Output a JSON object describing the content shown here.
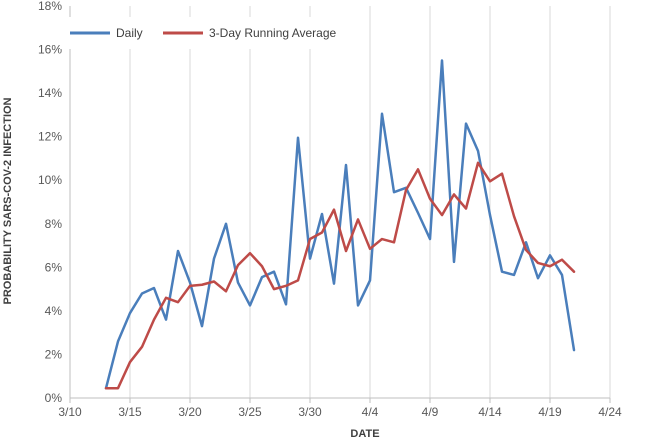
{
  "chart_data": {
    "type": "line",
    "title": "",
    "xlabel": "DATE",
    "ylabel": "PROBABILITY SARS-COV-2 INFECTION",
    "x_tick_labels": [
      "3/10",
      "3/15",
      "3/20",
      "3/25",
      "3/30",
      "4/4",
      "4/9",
      "4/14",
      "4/19",
      "4/24"
    ],
    "y_tick_labels": [
      "0%",
      "2%",
      "4%",
      "6%",
      "8%",
      "10%",
      "12%",
      "14%",
      "16%",
      "18%"
    ],
    "xlim": [
      "3/10",
      "4/24"
    ],
    "ylim": [
      0,
      18
    ],
    "grid": "vertical",
    "legend_position": "top-left",
    "series": [
      {
        "name": "Daily",
        "color": "#4a7ebb",
        "points": [
          [
            "3/13",
            0.45
          ],
          [
            "3/14",
            2.6
          ],
          [
            "3/15",
            3.9
          ],
          [
            "3/16",
            4.8
          ],
          [
            "3/17",
            5.05
          ],
          [
            "3/18",
            3.6
          ],
          [
            "3/19",
            6.75
          ],
          [
            "3/20",
            5.3
          ],
          [
            "3/21",
            3.3
          ],
          [
            "3/22",
            6.4
          ],
          [
            "3/23",
            8.0
          ],
          [
            "3/24",
            5.3
          ],
          [
            "3/25",
            4.25
          ],
          [
            "3/26",
            5.55
          ],
          [
            "3/27",
            5.8
          ],
          [
            "3/28",
            4.3
          ],
          [
            "3/29",
            11.95
          ],
          [
            "3/30",
            6.4
          ],
          [
            "3/31",
            8.45
          ],
          [
            "4/1",
            5.25
          ],
          [
            "4/2",
            10.7
          ],
          [
            "4/3",
            4.25
          ],
          [
            "4/4",
            5.4
          ],
          [
            "4/5",
            13.05
          ],
          [
            "4/6",
            9.45
          ],
          [
            "4/7",
            9.65
          ],
          [
            "4/8",
            8.5
          ],
          [
            "4/9",
            7.3
          ],
          [
            "4/10",
            15.5
          ],
          [
            "4/11",
            6.25
          ],
          [
            "4/12",
            12.6
          ],
          [
            "4/13",
            11.35
          ],
          [
            "4/14",
            8.4
          ],
          [
            "4/15",
            5.8
          ],
          [
            "4/16",
            5.65
          ],
          [
            "4/17",
            7.15
          ],
          [
            "4/18",
            5.5
          ],
          [
            "4/19",
            6.55
          ],
          [
            "4/20",
            5.65
          ],
          [
            "4/21",
            2.2
          ]
        ]
      },
      {
        "name": "3-Day Running Average",
        "color": "#be4b48",
        "points": [
          [
            "3/13",
            0.45
          ],
          [
            "3/14",
            0.45
          ],
          [
            "3/15",
            1.65
          ],
          [
            "3/16",
            2.35
          ],
          [
            "3/17",
            3.6
          ],
          [
            "3/18",
            4.6
          ],
          [
            "3/19",
            4.4
          ],
          [
            "3/20",
            5.15
          ],
          [
            "3/21",
            5.2
          ],
          [
            "3/22",
            5.35
          ],
          [
            "3/23",
            4.9
          ],
          [
            "3/24",
            6.1
          ],
          [
            "3/25",
            6.65
          ],
          [
            "3/26",
            6.05
          ],
          [
            "3/27",
            5.0
          ],
          [
            "3/28",
            5.15
          ],
          [
            "3/29",
            5.4
          ],
          [
            "3/30",
            7.3
          ],
          [
            "3/31",
            7.6
          ],
          [
            "4/1",
            8.65
          ],
          [
            "4/2",
            6.75
          ],
          [
            "4/3",
            8.2
          ],
          [
            "4/4",
            6.85
          ],
          [
            "4/5",
            7.3
          ],
          [
            "4/6",
            7.15
          ],
          [
            "4/7",
            9.55
          ],
          [
            "4/8",
            10.5
          ],
          [
            "4/9",
            9.15
          ],
          [
            "4/10",
            8.4
          ],
          [
            "4/11",
            9.35
          ],
          [
            "4/12",
            8.7
          ],
          [
            "4/13",
            10.8
          ],
          [
            "4/14",
            9.95
          ],
          [
            "4/15",
            10.3
          ],
          [
            "4/16",
            8.35
          ],
          [
            "4/17",
            6.8
          ],
          [
            "4/18",
            6.2
          ],
          [
            "4/19",
            6.05
          ],
          [
            "4/20",
            6.35
          ],
          [
            "4/21",
            5.8
          ]
        ]
      }
    ]
  }
}
